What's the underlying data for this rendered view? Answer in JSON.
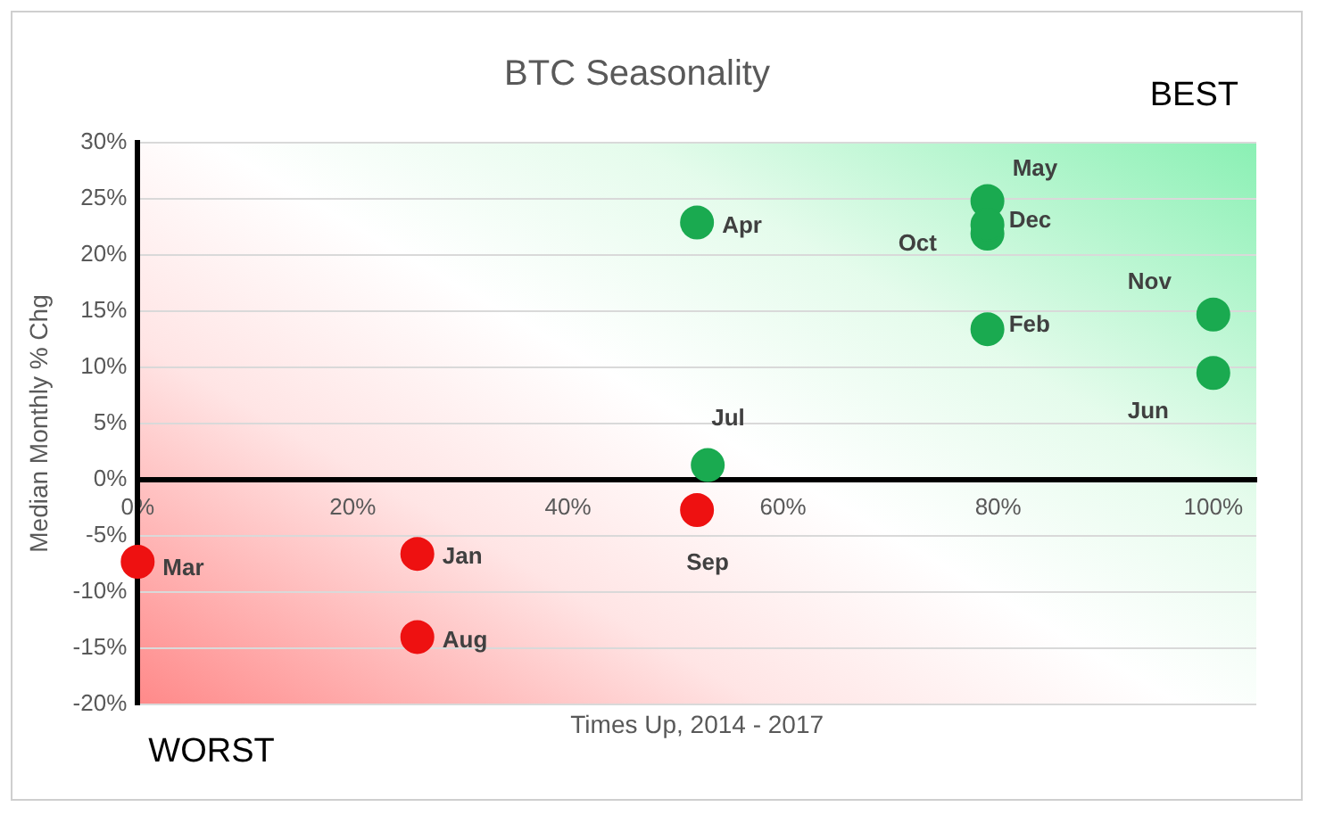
{
  "chart_data": {
    "type": "scatter",
    "title": "BTC Seasonality",
    "xlabel": "Times Up, 2014 - 2017",
    "ylabel": "Median Monthly % Chg",
    "x": [
      0,
      26,
      26,
      52,
      53,
      52,
      79,
      79,
      79,
      79,
      100,
      100
    ],
    "values": [
      -7.3,
      -6.6,
      -14,
      -2.7,
      1.3,
      22.9,
      24.8,
      21.9,
      22.7,
      13.4,
      14.7,
      9.5
    ],
    "colors": [
      "#ee1111",
      "#ee1111",
      "#ee1111",
      "#ee1111",
      "#1aaa50",
      "#1aaa50",
      "#1aaa50",
      "#1aaa50",
      "#1aaa50",
      "#1aaa50",
      "#1aaa50",
      "#1aaa50"
    ],
    "annotations": [
      {
        "text": "Mar",
        "x": 0,
        "y": -7.3
      },
      {
        "text": "Jan",
        "x": 26,
        "y": -6.6
      },
      {
        "text": "Aug",
        "x": 26,
        "y": -14
      },
      {
        "text": "Sep",
        "x": 52,
        "y": -2.7
      },
      {
        "text": "Jul",
        "x": 53,
        "y": 1.3
      },
      {
        "text": "Apr",
        "x": 52,
        "y": 22.9
      },
      {
        "text": "May",
        "x": 79,
        "y": 24.8
      },
      {
        "text": "Oct",
        "x": 79,
        "y": 21.9
      },
      {
        "text": "Dec",
        "x": 79,
        "y": 22.7
      },
      {
        "text": "Feb",
        "x": 79,
        "y": 13.4
      },
      {
        "text": "Nov",
        "x": 100,
        "y": 14.7
      },
      {
        "text": "Jun",
        "x": 100,
        "y": 9.5
      },
      "BEST",
      "WORST"
    ],
    "xlim": [
      0,
      104
    ],
    "xticks": [
      {
        "value": 0,
        "label": "0%"
      },
      {
        "value": 20,
        "label": "20%"
      },
      {
        "value": 40,
        "label": "40%"
      },
      {
        "value": 60,
        "label": "60%"
      },
      {
        "value": 80,
        "label": "80%"
      },
      {
        "value": 100,
        "label": "100%"
      }
    ],
    "ylim": [
      -20,
      30
    ],
    "yticks": [
      {
        "value": -20,
        "label": "-20%"
      },
      {
        "value": -15,
        "label": "-15%"
      },
      {
        "value": -10,
        "label": "-10%"
      },
      {
        "value": -5,
        "label": "-5%"
      },
      {
        "value": 0,
        "label": "0%"
      },
      {
        "value": 5,
        "label": "5%"
      },
      {
        "value": 10,
        "label": "10%"
      },
      {
        "value": 15,
        "label": "15%"
      },
      {
        "value": 20,
        "label": "20%"
      },
      {
        "value": 25,
        "label": "25%"
      },
      {
        "value": 30,
        "label": "30%"
      }
    ],
    "grid": "y",
    "marker": "circle"
  }
}
